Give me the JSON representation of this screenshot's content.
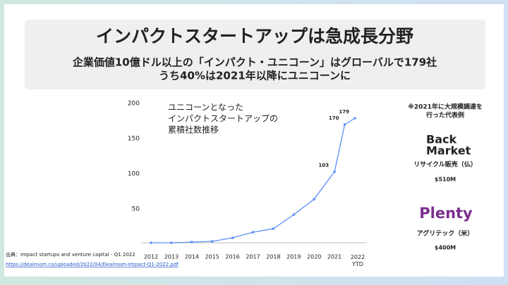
{
  "chart_data": {
    "type": "line",
    "title": "インパクトスタートアップは急成長分野",
    "subtitle": [
      "企業価値10億ドル以上の「インパクト・ユニコーン」はグローバルで179社",
      "うち40%は2021年以降にユニコーンに"
    ],
    "annotation": [
      "ユニコーンとなった",
      "インパクトスタートアップの",
      "累積社数推移"
    ],
    "x": [
      2012,
      2013,
      2014,
      2015,
      2016,
      2017,
      2018,
      2019,
      2020,
      2021,
      2021.5,
      2022
    ],
    "series": [
      {
        "name": "累積社数",
        "color": "#5b8ff9",
        "values": [
          2,
          2,
          3,
          4,
          9,
          17,
          22,
          42,
          64,
          103,
          170,
          179
        ],
        "value_labels": [
          null,
          null,
          null,
          null,
          null,
          null,
          null,
          null,
          null,
          "103",
          "170",
          "179"
        ]
      }
    ],
    "xlim": [
      2012,
      2022
    ],
    "xticks": [
      2012,
      2013,
      2014,
      2015,
      2016,
      2017,
      2018,
      2019,
      2020,
      2021,
      {
        "value": 2022,
        "label": "2022 YTD"
      }
    ],
    "ylim": [
      0,
      200
    ],
    "yticks": [
      50,
      100,
      150,
      200
    ],
    "side": {
      "heading": [
        "※2021年に大規模調達を",
        "行った代表例"
      ],
      "examples": [
        {
          "logo": [
            "Back",
            "Market"
          ],
          "label": "リサイクル販売（仏）",
          "amount": "$510M"
        },
        {
          "logo": [
            "Plenty"
          ],
          "label": "アグリテック（米）",
          "amount": "$400M"
        }
      ]
    },
    "source": [
      "出典：Impact startups and venture capital - Q1 2022",
      "https://dealroom.co/uploaded/2022/04/Dealroom-Impact-Q1-2022.pdf"
    ]
  }
}
